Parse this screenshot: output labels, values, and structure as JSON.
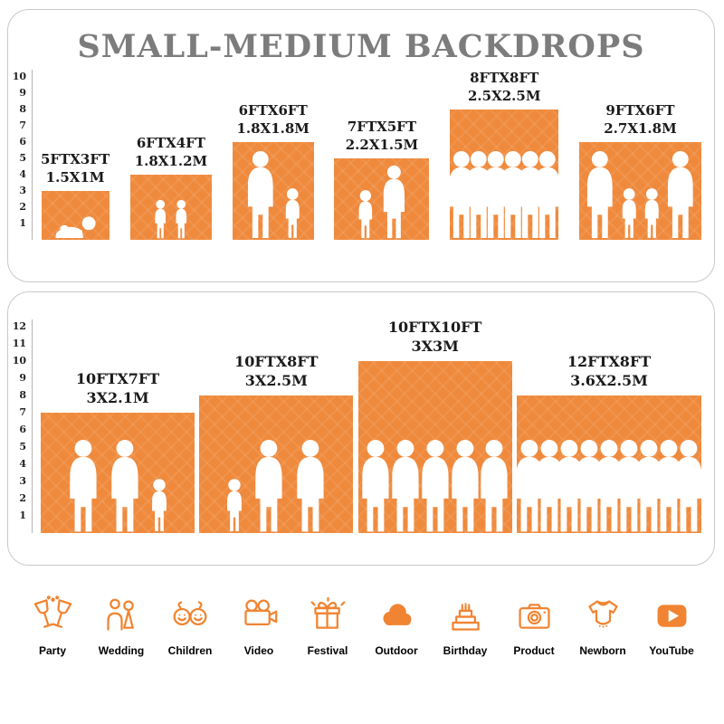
{
  "title": "SMALL-MEDIUM BACKDROPS",
  "colors": {
    "bar": "#EF8A3D",
    "title": "#7C7C7C",
    "icon": "#F08432",
    "text": "#1A1A1A"
  },
  "panels": [
    {
      "ruler_max": 10,
      "backdrops": [
        {
          "label1": "5FTX3FT",
          "label2": "1.5X1M",
          "width_ft": 5,
          "height_ft": 3,
          "figures": [
            "baby"
          ]
        },
        {
          "label1": "6FTX4FT",
          "label2": "1.8X1.2M",
          "width_ft": 6,
          "height_ft": 4,
          "figures": [
            "child",
            "child"
          ]
        },
        {
          "label1": "6FTX6FT",
          "label2": "1.8X1.8M",
          "width_ft": 6,
          "height_ft": 6,
          "figures": [
            "adult",
            "child"
          ]
        },
        {
          "label1": "7FTX5FT",
          "label2": "2.2X1.5M",
          "width_ft": 7,
          "height_ft": 5,
          "figures": [
            "child",
            "adult"
          ]
        },
        {
          "label1": "8FTX8FT",
          "label2": "2.5X2.5M",
          "width_ft": 8,
          "height_ft": 8,
          "figures": [
            "adult",
            "adult",
            "adult",
            "adult",
            "adult",
            "adult"
          ]
        },
        {
          "label1": "9FTX6FT",
          "label2": "2.7X1.8M",
          "width_ft": 9,
          "height_ft": 6,
          "figures": [
            "adult",
            "child",
            "child",
            "adult"
          ]
        }
      ]
    },
    {
      "ruler_max": 12,
      "backdrops": [
        {
          "label1": "10FTX7FT",
          "label2": "3X2.1M",
          "width_ft": 10,
          "height_ft": 7,
          "figures": [
            "adult",
            "adult",
            "child"
          ]
        },
        {
          "label1": "10FTX8FT",
          "label2": "3X2.5M",
          "width_ft": 10,
          "height_ft": 8,
          "figures": [
            "child",
            "adult",
            "adult"
          ]
        },
        {
          "label1": "10FTX10FT",
          "label2": "3X3M",
          "width_ft": 10,
          "height_ft": 10,
          "figures": [
            "adult",
            "adult",
            "adult",
            "adult",
            "adult"
          ]
        },
        {
          "label1": "12FTX8FT",
          "label2": "3.6X2.5M",
          "width_ft": 12,
          "height_ft": 8,
          "figures": [
            "adult",
            "adult",
            "adult",
            "adult",
            "adult",
            "adult",
            "adult",
            "adult",
            "adult"
          ]
        }
      ]
    }
  ],
  "categories": [
    {
      "label": "Party",
      "icon": "party-icon"
    },
    {
      "label": "Wedding",
      "icon": "wedding-icon"
    },
    {
      "label": "Children",
      "icon": "children-icon"
    },
    {
      "label": "Video",
      "icon": "video-icon"
    },
    {
      "label": "Festival",
      "icon": "festival-icon"
    },
    {
      "label": "Outdoor",
      "icon": "outdoor-icon"
    },
    {
      "label": "Birthday",
      "icon": "birthday-icon"
    },
    {
      "label": "Product",
      "icon": "product-icon"
    },
    {
      "label": "Newborn",
      "icon": "newborn-icon"
    },
    {
      "label": "YouTube",
      "icon": "youtube-icon"
    }
  ]
}
